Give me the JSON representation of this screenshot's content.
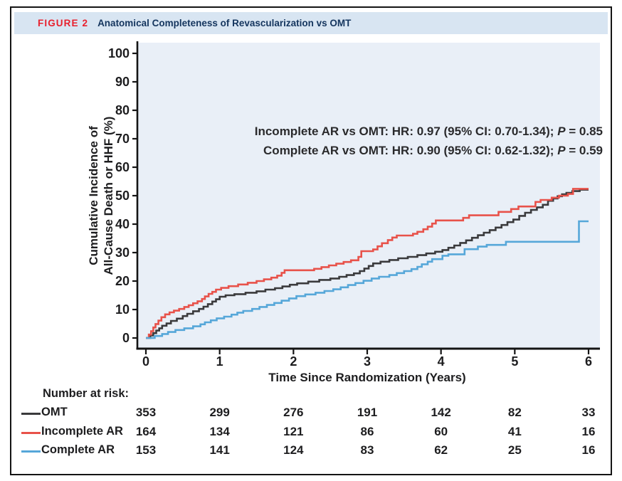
{
  "figure": {
    "label": "FIGURE 2",
    "title": "Anatomical Completeness of Revascularization vs OMT"
  },
  "colors": {
    "omt": "#3a3a3c",
    "incomplete_ar": "#e8524a",
    "complete_ar": "#56a7d9",
    "plot_bg": "#e9eff7",
    "header_band_bg": "#d8e5f2",
    "figure_label_red": "#e8202d",
    "title_navy": "#14355e",
    "axis_black": "#141414"
  },
  "chart_data": {
    "type": "line",
    "subtype": "kaplan-meier-step",
    "title": "",
    "xlabel": "Time Since Randomization (Years)",
    "ylabel_lines": [
      "Cumulative Incidence of",
      "All-Cause Death or HHF (%)"
    ],
    "xlim": [
      0,
      6
    ],
    "ylim": [
      0,
      100
    ],
    "xticks": [
      0,
      1,
      2,
      3,
      4,
      5,
      6
    ],
    "yticks": [
      0,
      10,
      20,
      30,
      40,
      50,
      60,
      70,
      80,
      90,
      100
    ],
    "grid": false,
    "legend_position": "risk-table-left",
    "annotations": [
      {
        "pre": "Incomplete AR vs OMT: HR: 0.97 (95% CI: 0.70-1.34); ",
        "p": "P",
        "post": " = 0.85"
      },
      {
        "pre": "Complete AR vs OMT: HR: 0.90 (95% CI: 0.62-1.32); ",
        "p": "P",
        "post": " = 0.59"
      }
    ],
    "series": [
      {
        "name": "OMT",
        "color": "#3a3a3c",
        "points": [
          [
            0,
            0
          ],
          [
            0.06,
            0.9
          ],
          [
            0.1,
            1.7
          ],
          [
            0.14,
            2.6
          ],
          [
            0.18,
            3.4
          ],
          [
            0.22,
            4.3
          ],
          [
            0.28,
            5.1
          ],
          [
            0.34,
            6.0
          ],
          [
            0.42,
            6.8
          ],
          [
            0.5,
            7.7
          ],
          [
            0.56,
            8.5
          ],
          [
            0.64,
            9.4
          ],
          [
            0.72,
            10.2
          ],
          [
            0.78,
            11.0
          ],
          [
            0.84,
            11.9
          ],
          [
            0.9,
            12.8
          ],
          [
            0.95,
            13.6
          ],
          [
            1.0,
            14.5
          ],
          [
            1.08,
            15.0
          ],
          [
            1.2,
            15.4
          ],
          [
            1.35,
            15.9
          ],
          [
            1.5,
            16.4
          ],
          [
            1.62,
            17.0
          ],
          [
            1.75,
            17.5
          ],
          [
            1.85,
            18.1
          ],
          [
            1.95,
            18.7
          ],
          [
            2.05,
            19.2
          ],
          [
            2.2,
            19.8
          ],
          [
            2.35,
            20.4
          ],
          [
            2.5,
            20.9
          ],
          [
            2.62,
            21.5
          ],
          [
            2.72,
            22.1
          ],
          [
            2.82,
            22.7
          ],
          [
            2.9,
            23.5
          ],
          [
            2.96,
            24.4
          ],
          [
            3.02,
            25.3
          ],
          [
            3.08,
            26.2
          ],
          [
            3.18,
            26.8
          ],
          [
            3.3,
            27.4
          ],
          [
            3.42,
            28.0
          ],
          [
            3.55,
            28.5
          ],
          [
            3.68,
            29.1
          ],
          [
            3.8,
            29.7
          ],
          [
            3.92,
            30.3
          ],
          [
            4.02,
            30.9
          ],
          [
            4.1,
            31.7
          ],
          [
            4.18,
            32.5
          ],
          [
            4.26,
            33.4
          ],
          [
            4.34,
            34.3
          ],
          [
            4.42,
            35.2
          ],
          [
            4.5,
            36.1
          ],
          [
            4.58,
            37.0
          ],
          [
            4.66,
            37.9
          ],
          [
            4.74,
            38.8
          ],
          [
            4.82,
            39.7
          ],
          [
            4.9,
            40.7
          ],
          [
            4.98,
            41.6
          ],
          [
            5.06,
            42.9
          ],
          [
            5.14,
            44.0
          ],
          [
            5.22,
            45.0
          ],
          [
            5.3,
            45.9
          ],
          [
            5.38,
            46.8
          ],
          [
            5.45,
            48.2
          ],
          [
            5.52,
            49.0
          ],
          [
            5.58,
            49.8
          ],
          [
            5.64,
            50.5
          ],
          [
            5.7,
            51.0
          ],
          [
            5.78,
            51.6
          ],
          [
            5.88,
            52.1
          ],
          [
            6.0,
            52.1
          ]
        ]
      },
      {
        "name": "Incomplete AR",
        "color": "#e8524a",
        "points": [
          [
            0,
            0
          ],
          [
            0.04,
            1.2
          ],
          [
            0.07,
            2.4
          ],
          [
            0.1,
            3.7
          ],
          [
            0.13,
            4.9
          ],
          [
            0.17,
            6.1
          ],
          [
            0.21,
            7.3
          ],
          [
            0.26,
            8.3
          ],
          [
            0.32,
            9.0
          ],
          [
            0.38,
            9.6
          ],
          [
            0.45,
            10.2
          ],
          [
            0.52,
            10.9
          ],
          [
            0.58,
            11.5
          ],
          [
            0.64,
            12.2
          ],
          [
            0.7,
            12.9
          ],
          [
            0.76,
            13.7
          ],
          [
            0.8,
            14.6
          ],
          [
            0.85,
            15.5
          ],
          [
            0.9,
            16.2
          ],
          [
            0.95,
            17.0
          ],
          [
            1.02,
            17.6
          ],
          [
            1.12,
            18.2
          ],
          [
            1.25,
            18.8
          ],
          [
            1.38,
            19.4
          ],
          [
            1.5,
            20.0
          ],
          [
            1.6,
            20.6
          ],
          [
            1.7,
            21.2
          ],
          [
            1.78,
            21.9
          ],
          [
            1.84,
            22.9
          ],
          [
            1.88,
            23.8
          ],
          [
            2.28,
            24.3
          ],
          [
            2.38,
            24.9
          ],
          [
            2.48,
            25.5
          ],
          [
            2.58,
            26.1
          ],
          [
            2.68,
            26.7
          ],
          [
            2.78,
            27.3
          ],
          [
            2.88,
            28.5
          ],
          [
            2.92,
            30.5
          ],
          [
            3.08,
            31.1
          ],
          [
            3.14,
            32.2
          ],
          [
            3.2,
            33.3
          ],
          [
            3.28,
            34.4
          ],
          [
            3.34,
            35.3
          ],
          [
            3.4,
            36.0
          ],
          [
            3.62,
            36.6
          ],
          [
            3.68,
            37.3
          ],
          [
            3.76,
            38.2
          ],
          [
            3.82,
            39.1
          ],
          [
            3.88,
            40.2
          ],
          [
            3.93,
            41.3
          ],
          [
            4.3,
            42.2
          ],
          [
            4.38,
            43.1
          ],
          [
            4.78,
            44.3
          ],
          [
            4.95,
            45.3
          ],
          [
            5.05,
            46.2
          ],
          [
            5.28,
            47.8
          ],
          [
            5.35,
            48.5
          ],
          [
            5.5,
            49.3
          ],
          [
            5.6,
            50.0
          ],
          [
            5.72,
            50.6
          ],
          [
            5.79,
            52.4
          ],
          [
            6.0,
            52.4
          ]
        ]
      },
      {
        "name": "Complete AR",
        "color": "#56a7d9",
        "points": [
          [
            0,
            0
          ],
          [
            0.12,
            0.7
          ],
          [
            0.22,
            1.4
          ],
          [
            0.3,
            2.1
          ],
          [
            0.4,
            2.8
          ],
          [
            0.52,
            3.4
          ],
          [
            0.64,
            4.1
          ],
          [
            0.74,
            4.8
          ],
          [
            0.8,
            5.5
          ],
          [
            0.88,
            6.2
          ],
          [
            0.96,
            6.9
          ],
          [
            1.06,
            7.5
          ],
          [
            1.16,
            8.2
          ],
          [
            1.24,
            8.9
          ],
          [
            1.32,
            9.5
          ],
          [
            1.44,
            10.2
          ],
          [
            1.54,
            10.9
          ],
          [
            1.64,
            11.6
          ],
          [
            1.74,
            12.3
          ],
          [
            1.84,
            13.1
          ],
          [
            1.94,
            13.9
          ],
          [
            2.04,
            14.7
          ],
          [
            2.16,
            15.3
          ],
          [
            2.3,
            15.9
          ],
          [
            2.42,
            16.5
          ],
          [
            2.54,
            17.1
          ],
          [
            2.64,
            17.8
          ],
          [
            2.74,
            18.6
          ],
          [
            2.84,
            19.3
          ],
          [
            2.95,
            20.1
          ],
          [
            3.06,
            20.9
          ],
          [
            3.16,
            21.5
          ],
          [
            3.3,
            22.1
          ],
          [
            3.4,
            22.8
          ],
          [
            3.5,
            23.5
          ],
          [
            3.6,
            24.2
          ],
          [
            3.68,
            25.0
          ],
          [
            3.74,
            25.9
          ],
          [
            3.82,
            26.8
          ],
          [
            3.88,
            27.7
          ],
          [
            4.02,
            28.9
          ],
          [
            4.1,
            29.4
          ],
          [
            4.32,
            31.2
          ],
          [
            4.5,
            32.1
          ],
          [
            4.62,
            32.7
          ],
          [
            4.88,
            33.8
          ],
          [
            5.85,
            33.8
          ],
          [
            5.87,
            41.0
          ],
          [
            6.0,
            41.0
          ]
        ]
      }
    ]
  },
  "risk_table": {
    "title": "Number at risk:",
    "time_points": [
      0,
      1,
      2,
      3,
      4,
      5,
      6
    ],
    "rows": [
      {
        "name": "OMT",
        "color": "#3a3a3c",
        "values": [
          "353",
          "299",
          "276",
          "191",
          "142",
          "82",
          "33"
        ]
      },
      {
        "name": "Incomplete AR",
        "color": "#e8524a",
        "values": [
          "164",
          "134",
          "121",
          "86",
          "60",
          "41",
          "16"
        ]
      },
      {
        "name": "Complete AR",
        "color": "#56a7d9",
        "values": [
          "153",
          "141",
          "124",
          "83",
          "62",
          "25",
          "16"
        ]
      }
    ]
  }
}
